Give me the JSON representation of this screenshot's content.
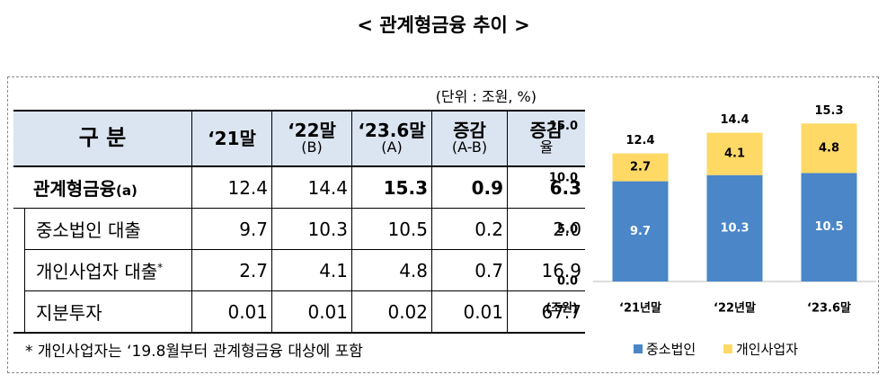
{
  "title": "< 관계형금융 추이 >",
  "unit": "(단위 : 조원, %)",
  "table": {
    "header": [
      {
        "main": "구 분"
      },
      {
        "main": "‘21말"
      },
      {
        "main": "‘22말",
        "sub": "(B)"
      },
      {
        "main": "‘23.6말",
        "sub": "(A)"
      },
      {
        "main": "증감",
        "sub": "(A-B)"
      },
      {
        "main": "증감",
        "sub": "율"
      }
    ],
    "rows": [
      {
        "label": "관계형금융",
        "suffix": "(a)",
        "cells": [
          "12.4",
          "14.4",
          "15.3",
          "0.9",
          "6.3"
        ]
      },
      {
        "label": "중소법인 대출",
        "cells": [
          "9.7",
          "10.3",
          "10.5",
          "0.2",
          "2.0"
        ]
      },
      {
        "label": "개인사업자 대출",
        "mark": "*",
        "cells": [
          "2.7",
          "4.1",
          "4.8",
          "0.7",
          "16.9"
        ]
      },
      {
        "label": "지분투자",
        "cells": [
          "0.01",
          "0.01",
          "0.02",
          "0.01",
          "67.7"
        ]
      }
    ]
  },
  "footnote": "*  개인사업자는 ‘19.8월부터 관계형금융 대상에 포함",
  "chart_data": {
    "type": "stacked-bar",
    "y_unit": "(조원)",
    "categories": [
      "‘21년말",
      "‘22년말",
      "‘23.6말"
    ],
    "series": [
      {
        "name": "중소법인",
        "color": "#4a86c8",
        "values": [
          9.7,
          10.3,
          10.5
        ]
      },
      {
        "name": "개인사업자",
        "color": "#ffd966",
        "values": [
          2.7,
          4.1,
          4.8
        ]
      }
    ],
    "totals": [
      12.4,
      14.4,
      15.3
    ],
    "ylim": [
      0,
      17.5
    ],
    "yticks": [
      {
        "value": 0,
        "label": "0.0"
      },
      {
        "value": 5,
        "label": "5.0"
      },
      {
        "value": 10,
        "label": "10.0"
      },
      {
        "value": 15,
        "label": "15.0"
      }
    ],
    "legend": "bottom"
  }
}
